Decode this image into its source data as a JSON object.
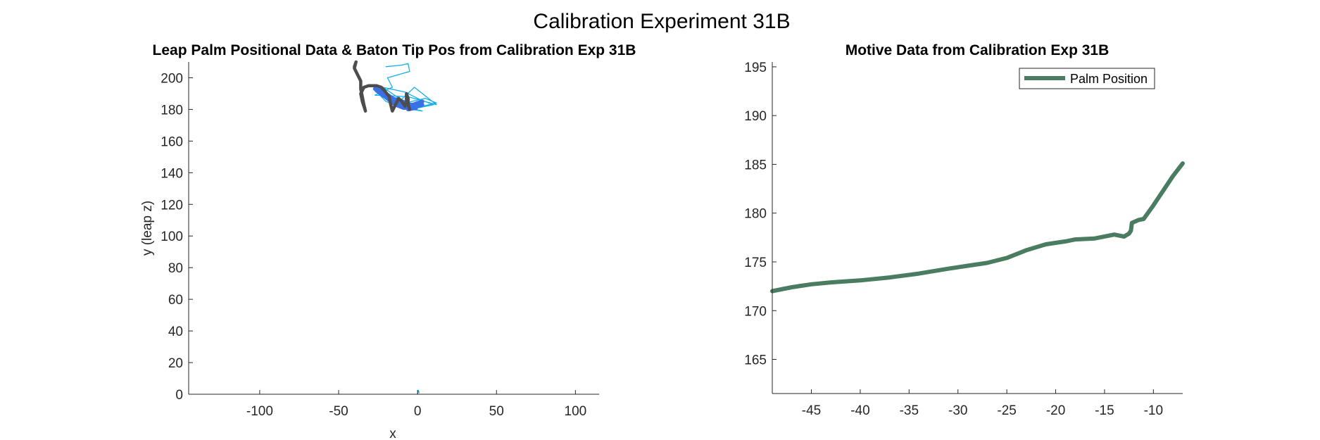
{
  "figure_title": "Calibration Experiment 31B",
  "colors": {
    "palm_trace": "#4d4d4d",
    "baton_tip_thick": "#3a6fe6",
    "baton_tip_thin": "#12aef0",
    "motive_line": "#4a7c62",
    "axis": "#262626"
  },
  "chart_data": [
    {
      "type": "line",
      "title": "Leap Palm Positional Data & Baton Tip Pos from Calibration Exp 31B",
      "xlabel": "x",
      "ylabel": "y (leap z)",
      "xlim": [
        -145,
        115
      ],
      "ylim": [
        0,
        210
      ],
      "xticks": [
        -100,
        -50,
        0,
        50,
        100
      ],
      "yticks": [
        0,
        20,
        40,
        60,
        80,
        100,
        120,
        140,
        160,
        180,
        200
      ],
      "grid": false,
      "series": [
        {
          "style": "thin",
          "values": [
            [
              -20,
              207
            ],
            [
              -10,
              208
            ],
            [
              -6,
              209
            ],
            [
              -5,
              204
            ],
            [
              -19,
              200
            ],
            [
              -16,
              194
            ],
            [
              -27,
              189
            ],
            [
              -6,
              188
            ],
            [
              12,
              183
            ],
            [
              -2,
              194
            ],
            [
              -16,
              181
            ],
            [
              -14,
              183
            ],
            [
              -1,
              180
            ],
            [
              3,
              179
            ],
            [
              -10,
              181
            ],
            [
              -18,
              185
            ],
            [
              -25,
              190
            ],
            [
              -28,
              193
            ],
            [
              -20,
              185
            ],
            [
              -12,
              182
            ],
            [
              -4,
              185
            ],
            [
              5,
              187
            ],
            [
              12,
              184
            ],
            [
              3,
              182
            ],
            [
              -6,
              183
            ],
            [
              -16,
              190
            ],
            [
              -22,
              194
            ],
            [
              -8,
              191
            ],
            [
              2,
              186
            ],
            [
              10,
              183
            ],
            [
              -4,
              180
            ],
            [
              -12,
              186
            ]
          ]
        },
        {
          "style": "thick",
          "values": [
            [
              -27,
              193
            ],
            [
              -24,
              192
            ],
            [
              -21,
              190
            ],
            [
              -18,
              188
            ],
            [
              -15,
              186
            ],
            [
              -12,
              185
            ],
            [
              -9,
              184
            ],
            [
              -6,
              183
            ],
            [
              -3,
              183
            ],
            [
              0,
              184
            ],
            [
              3,
              185
            ],
            [
              -1,
              183
            ],
            [
              -6,
              182
            ],
            [
              -11,
              183
            ],
            [
              -15,
              185
            ],
            [
              -19,
              187
            ],
            [
              -23,
              190
            ],
            [
              -26,
              192
            ],
            [
              -22,
              189
            ],
            [
              -17,
              187
            ],
            [
              -12,
              186
            ],
            [
              -7,
              184
            ],
            [
              -2,
              182
            ],
            [
              3,
              183
            ],
            [
              -4,
              181
            ],
            [
              -9,
              181
            ],
            [
              -14,
              183
            ],
            [
              -18,
              186
            ],
            [
              -24,
              191
            ],
            [
              -27,
              193
            ],
            [
              -20,
              190
            ],
            [
              -13,
              185
            ],
            [
              -7,
              183
            ],
            [
              -1,
              181
            ],
            [
              -6,
              180
            ]
          ]
        },
        {
          "style": "palm",
          "values": [
            [
              -40,
              207
            ],
            [
              -39,
              210
            ],
            [
              -40,
              206
            ],
            [
              -38,
              202
            ],
            [
              -36,
              198
            ],
            [
              -36,
              193
            ],
            [
              -35,
              188
            ],
            [
              -34,
              183
            ],
            [
              -33,
              179
            ],
            [
              -35,
              185
            ],
            [
              -36,
              190
            ],
            [
              -34,
              194
            ],
            [
              -31,
              195
            ],
            [
              -26,
              195
            ],
            [
              -23,
              194
            ],
            [
              -21,
              192
            ],
            [
              -18,
              188
            ],
            [
              -17,
              183
            ],
            [
              -16,
              179
            ],
            [
              -14,
              183
            ],
            [
              -12,
              187
            ],
            [
              -10,
              185
            ],
            [
              -8,
              182
            ],
            [
              -7,
              185
            ],
            [
              -7,
              190
            ],
            [
              -6,
              187
            ],
            [
              -6,
              183
            ],
            [
              -5,
              180
            ]
          ]
        },
        {
          "style": "thin",
          "values": [
            [
              0,
              0
            ],
            [
              0.5,
              2.5
            ],
            [
              1,
              1
            ]
          ]
        }
      ]
    },
    {
      "type": "line",
      "title": "Motive Data from Calibration Exp 31B",
      "xlabel": "",
      "ylabel": "",
      "xlim": [
        -49,
        -7
      ],
      "ylim": [
        161.5,
        195.5
      ],
      "xticks": [
        -45,
        -40,
        -35,
        -30,
        -25,
        -20,
        -15,
        -10
      ],
      "yticks": [
        165,
        170,
        175,
        180,
        185,
        190,
        195
      ],
      "grid": false,
      "legend": "top-right",
      "series": [
        {
          "name": "Palm Position",
          "x": [
            -49,
            -47,
            -45,
            -43,
            -40,
            -37,
            -34,
            -31,
            -29,
            -27,
            -25,
            -23,
            -21,
            -19,
            -18,
            -16,
            -14,
            -13,
            -12.5,
            -12.3,
            -12.2,
            -11.5,
            -11,
            -10,
            -9,
            -8,
            -7
          ],
          "y": [
            172,
            172.4,
            172.7,
            172.9,
            173.1,
            173.4,
            173.8,
            174.3,
            174.6,
            174.9,
            175.4,
            176.2,
            176.8,
            177.1,
            177.3,
            177.4,
            177.8,
            177.6,
            177.9,
            178.2,
            179.0,
            179.3,
            179.4,
            180.8,
            182.3,
            183.8,
            185.1
          ]
        }
      ]
    }
  ]
}
